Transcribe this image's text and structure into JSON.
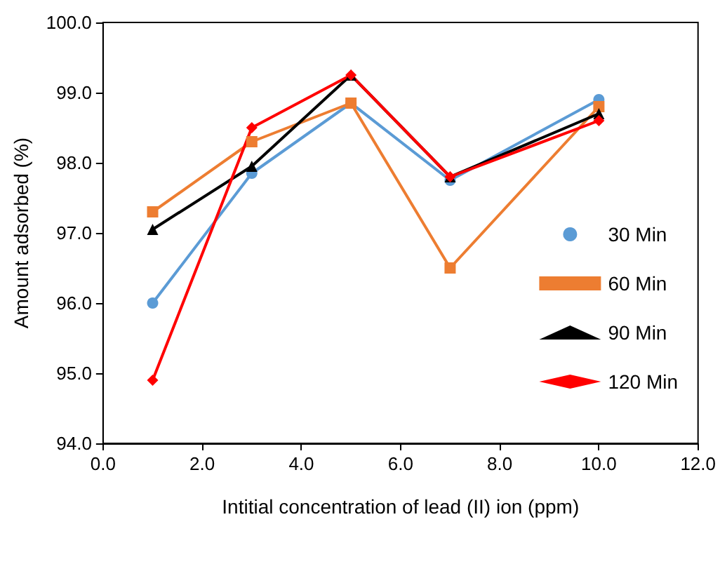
{
  "chart_data": {
    "type": "line",
    "xlabel": "Intitial concentration of lead (II) ion (ppm)",
    "ylabel": "Amount adsorbed (%)",
    "x": [
      1,
      3,
      5,
      7,
      10
    ],
    "series": [
      {
        "name": "30 Min",
        "color": "#5b9bd5",
        "marker": "circle",
        "values": [
          96.0,
          97.85,
          98.85,
          97.75,
          98.9
        ]
      },
      {
        "name": "60 Min",
        "color": "#ed7d31",
        "marker": "square",
        "values": [
          97.3,
          98.3,
          98.85,
          96.5,
          98.8
        ]
      },
      {
        "name": "90 Min",
        "color": "#000000",
        "marker": "triangle",
        "values": [
          97.05,
          97.95,
          99.25,
          97.8,
          98.7
        ]
      },
      {
        "name": "120 Min",
        "color": "#ff0000",
        "marker": "diamond",
        "values": [
          94.9,
          98.5,
          99.25,
          97.8,
          98.6
        ]
      }
    ],
    "xlim": [
      0,
      12
    ],
    "xticks": [
      {
        "value": 0,
        "label": "0.0"
      },
      {
        "value": 2,
        "label": "2.0"
      },
      {
        "value": 4,
        "label": "4.0"
      },
      {
        "value": 6,
        "label": "6.0"
      },
      {
        "value": 8,
        "label": "8.0"
      },
      {
        "value": 10,
        "label": "10.0"
      },
      {
        "value": 12,
        "label": "12.0"
      }
    ],
    "ylim": [
      94,
      100
    ],
    "yticks": [
      {
        "value": 94,
        "label": "94.0"
      },
      {
        "value": 95,
        "label": "95.0"
      },
      {
        "value": 96,
        "label": "96.0"
      },
      {
        "value": 97,
        "label": "97.0"
      },
      {
        "value": 98,
        "label": "98.0"
      },
      {
        "value": 99,
        "label": "99.0"
      },
      {
        "value": 100,
        "label": "100.0"
      }
    ],
    "grid": false,
    "legend": "right"
  }
}
